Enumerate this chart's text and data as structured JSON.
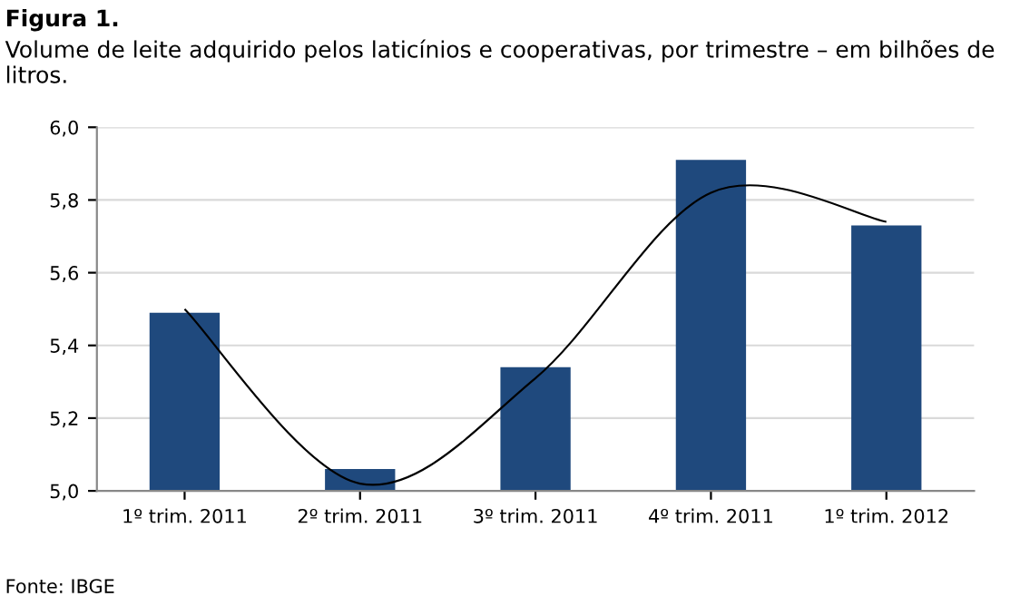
{
  "chart_data": {
    "type": "bar",
    "title": "Figura 1.",
    "subtitle": "Volume de leite adquirido pelos laticínios e cooperativas, por trimestre – em bilhões de litros.",
    "categories": [
      "1º trim. 2011",
      "2º trim. 2011",
      "3º trim. 2011",
      "4º trim. 2011",
      "1º trim. 2012"
    ],
    "series": [
      {
        "color": "#1f497d",
        "values": [
          5.49,
          5.06,
          5.34,
          5.91,
          5.73
        ]
      },
      {
        "type": "line",
        "color": "#000000",
        "values": [
          5.5,
          5.02,
          5.31,
          5.82,
          5.74
        ]
      }
    ],
    "ylim": [
      5.0,
      6.0
    ],
    "yticks": [
      {
        "value": 5.0,
        "label": "5,0"
      },
      {
        "value": 5.2,
        "label": "5,2"
      },
      {
        "value": 5.4,
        "label": "5,4"
      },
      {
        "value": 5.6,
        "label": "5,6"
      },
      {
        "value": 5.8,
        "label": "5,8"
      },
      {
        "value": 6.0,
        "label": "6,0"
      }
    ],
    "grid": "y",
    "annotations": [
      "Fonte: IBGE"
    ]
  }
}
